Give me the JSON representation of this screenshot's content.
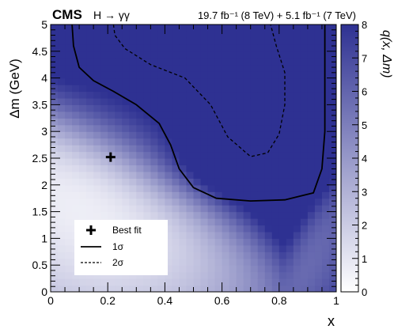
{
  "chart_data": {
    "type": "heatmap",
    "header": {
      "experiment": "CMS",
      "channel": "H → γγ",
      "lumi": "19.7 fb⁻¹ (8 TeV) + 5.1 fb⁻¹ (7 TeV)"
    },
    "xlabel": "x",
    "ylabel": "Δm  (GeV)",
    "zlabel": "q(x, Δm)",
    "xlim": [
      0,
      1
    ],
    "ylim": [
      0,
      5
    ],
    "zlim": [
      0,
      8
    ],
    "xticks": [
      "0",
      "0.2",
      "0.4",
      "0.6",
      "0.8",
      "1"
    ],
    "yticks": [
      "0",
      "0.5",
      "1",
      "1.5",
      "2",
      "2.5",
      "3",
      "3.5",
      "4",
      "4.5",
      "5"
    ],
    "zticks": [
      "0",
      "1",
      "2",
      "3",
      "4",
      "5",
      "6",
      "7",
      "8"
    ],
    "best_fit": {
      "x": 0.21,
      "y": 2.52
    },
    "contour_1sigma": [
      [
        0.075,
        5.0
      ],
      [
        0.08,
        4.6
      ],
      [
        0.1,
        4.2
      ],
      [
        0.15,
        3.95
      ],
      [
        0.22,
        3.75
      ],
      [
        0.3,
        3.5
      ],
      [
        0.38,
        3.15
      ],
      [
        0.42,
        2.75
      ],
      [
        0.45,
        2.3
      ],
      [
        0.5,
        1.95
      ],
      [
        0.58,
        1.75
      ],
      [
        0.7,
        1.7
      ],
      [
        0.82,
        1.72
      ],
      [
        0.92,
        1.85
      ],
      [
        0.95,
        2.3
      ],
      [
        0.96,
        3.0
      ],
      [
        0.96,
        5.0
      ]
    ],
    "contour_2sigma": [
      [
        0.22,
        5.0
      ],
      [
        0.225,
        4.8
      ],
      [
        0.26,
        4.55
      ],
      [
        0.35,
        4.25
      ],
      [
        0.47,
        4.0
      ],
      [
        0.56,
        3.5
      ],
      [
        0.62,
        2.9
      ],
      [
        0.7,
        2.53
      ],
      [
        0.76,
        2.6
      ],
      [
        0.8,
        2.95
      ],
      [
        0.82,
        3.5
      ],
      [
        0.82,
        4.1
      ],
      [
        0.79,
        4.6
      ],
      [
        0.77,
        5.0
      ]
    ],
    "legend": [
      {
        "symbol": "cross",
        "label": "Best fit"
      },
      {
        "symbol": "solid",
        "label": "1σ"
      },
      {
        "symbol": "dashed",
        "label": "2σ"
      }
    ],
    "colors": {
      "low": "#ffffff",
      "high": "#2e3192"
    }
  }
}
